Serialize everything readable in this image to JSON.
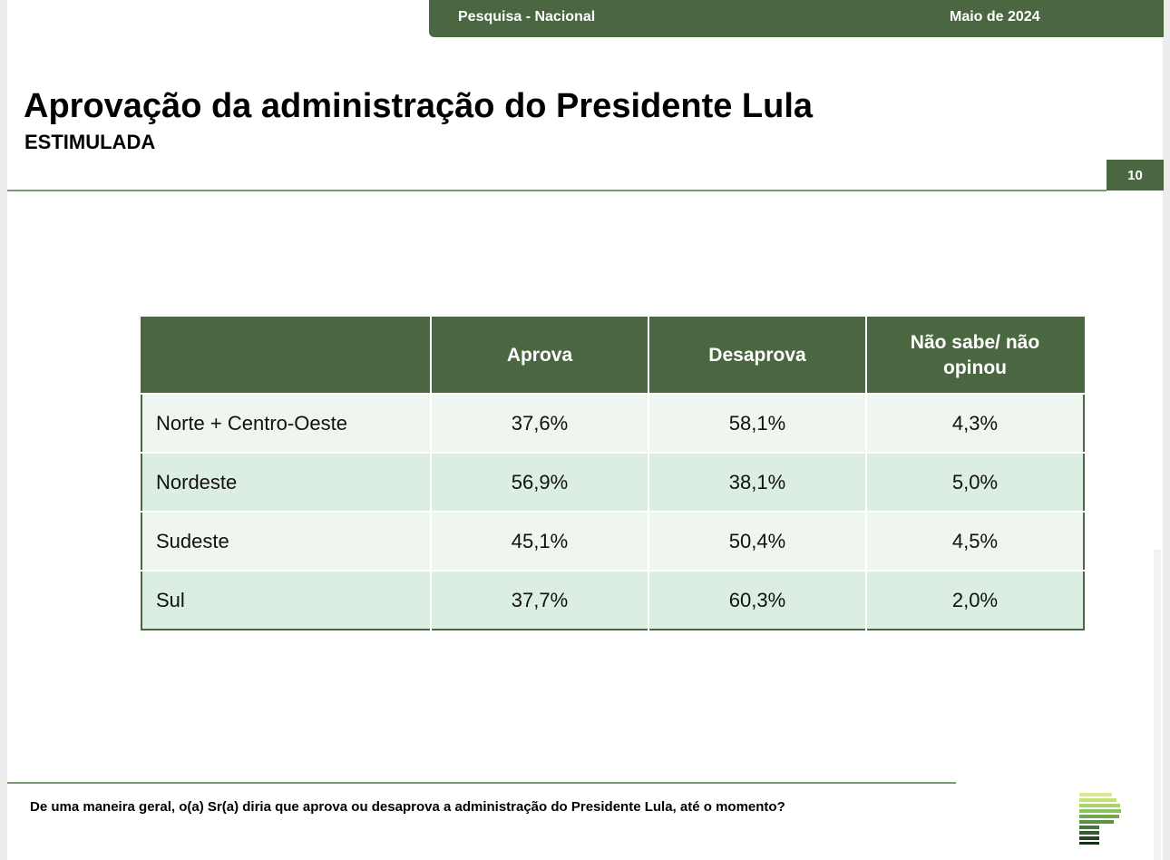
{
  "header": {
    "survey": "Pesquisa - Nacional",
    "date": "Maio de 2024"
  },
  "title": "Aprovação da administração do Presidente Lula",
  "subtitle": "ESTIMULADA",
  "page_number": "10",
  "table": {
    "columns": [
      "",
      "Aprova",
      "Desaprova",
      "Não sabe/ não opinou"
    ],
    "rows": [
      {
        "region": "Norte + Centro-Oeste",
        "aprova": "37,6%",
        "desaprova": "58,1%",
        "nao_sabe": "4,3%"
      },
      {
        "region": "Nordeste",
        "aprova": "56,9%",
        "desaprova": "38,1%",
        "nao_sabe": "5,0%"
      },
      {
        "region": "Sudeste",
        "aprova": "45,1%",
        "desaprova": "50,4%",
        "nao_sabe": "4,5%"
      },
      {
        "region": "Sul",
        "aprova": "37,7%",
        "desaprova": "60,3%",
        "nao_sabe": "2,0%"
      }
    ]
  },
  "footer": {
    "question": "De uma maneira geral, o(a) Sr(a) diria que aprova ou desaprova a administração do Presidente Lula, até o momento?"
  },
  "colors": {
    "brand_green": "#4a6741",
    "row_light": "#eef6ef",
    "row_dark": "#dcede1"
  },
  "icons": {
    "logo": "striped-p-logo"
  }
}
